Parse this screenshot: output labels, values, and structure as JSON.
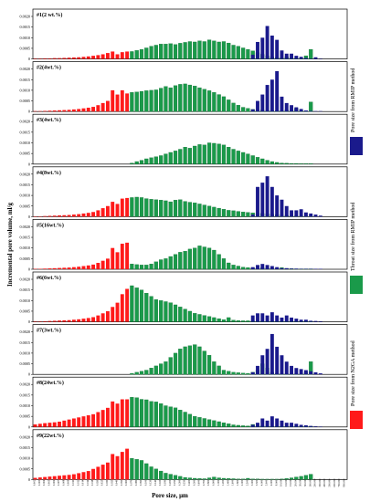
{
  "chart_data": {
    "type": "bar",
    "y_axis_label": "Incremental pore volume, ml/g",
    "x_axis_label": "Pore size, μm",
    "y_ticks": [
      "0",
      "0.0005",
      "0.0010",
      "0.0015",
      "0.0020"
    ],
    "ylim": [
      0,
      0.002
    ],
    "legend": [
      {
        "label": "Pore size from RMIP method",
        "color": "#1a1a8c"
      },
      {
        "label": "Throat size from RMIP method",
        "color": "#1a9a4a"
      },
      {
        "label": "Pore size from N2GA method",
        "color": "#ff1a1a"
      }
    ],
    "x_tick_labels": [
      "0.002",
      "0.003",
      "0.004",
      "0.005",
      "0.006",
      "0.007",
      "0.008",
      "0.009",
      "0.010",
      "0.012",
      "0.014",
      "0.016",
      "0.018",
      "0.020",
      "0.025",
      "0.030",
      "0.035",
      "0.040",
      "0.050",
      "0.060",
      "0.070",
      "0.080",
      "0.090",
      "0.100",
      "0.120",
      "0.140",
      "0.160",
      "0.180",
      "0.200",
      "0.250",
      "0.300",
      "0.350",
      "0.400",
      "0.500",
      "0.600",
      "0.700",
      "0.800",
      "0.900",
      "1.000",
      "1.200",
      "1.400",
      "1.600",
      "1.800",
      "2.000",
      "2.500",
      "3.000",
      "3.500",
      "4.000",
      "5.000",
      "6.000",
      "8.000",
      "10.000",
      "12.000",
      "15.000",
      "20.000",
      "30.000",
      "50.000",
      "100.000",
      "200.000",
      "300.000",
      "400.000",
      "500.000",
      "600.000",
      "700.000",
      "800.000"
    ],
    "panels": [
      {
        "label": "#1(2 wt.%)",
        "red": [
          2e-05,
          2e-05,
          3e-05,
          3e-05,
          4e-05,
          4e-05,
          5e-05,
          6e-05,
          7e-05,
          8e-05,
          0.0001,
          0.00012,
          0.00015,
          0.00018,
          0.00022,
          0.00028,
          0.00035,
          0.00022,
          0.00032,
          0.00035
        ],
        "green": [
          0.00035,
          0.0004,
          0.00045,
          0.00052,
          0.0006,
          0.00065,
          0.0007,
          0.0007,
          0.00072,
          0.00068,
          0.00074,
          0.00078,
          0.00082,
          0.0008,
          0.00085,
          0.00082,
          0.0009,
          0.00085,
          0.0008,
          0.00082,
          0.00075,
          0.00065,
          0.0006,
          0.00052,
          0.00045,
          0.00038,
          0.0003,
          0.00022,
          0.00015,
          0.0001,
          7e-05,
          6e-05,
          0.0001,
          6e-05,
          4e-05,
          4e-05,
          0.00015,
          0.00045
        ],
        "blue": [
          0.0002,
          0.0008,
          0.001,
          0.00155,
          0.0011,
          0.0009,
          0.0004,
          0.00025,
          0.00025,
          0.00015,
          0.0001,
          5e-05,
          2e-05,
          8e-05,
          2e-05
        ]
      },
      {
        "label": "#2(4wt.%)",
        "red": [
          2e-05,
          2e-05,
          3e-05,
          4e-05,
          5e-05,
          6e-05,
          7e-05,
          8e-05,
          0.0001,
          0.00012,
          0.00015,
          0.00018,
          0.00022,
          0.0003,
          0.0004,
          0.0005,
          0.001,
          0.0008,
          0.001,
          0.00085
        ],
        "green": [
          0.0009,
          0.00092,
          0.00095,
          0.00098,
          0.001,
          0.00102,
          0.0011,
          0.00118,
          0.00112,
          0.00122,
          0.00128,
          0.0013,
          0.00125,
          0.0012,
          0.00112,
          0.00105,
          0.00098,
          0.0009,
          0.0008,
          0.0007,
          0.00055,
          0.0004,
          0.0003,
          0.0002,
          0.00015,
          0.0001,
          8e-05,
          6e-05,
          5e-05,
          5e-05,
          4e-05,
          4e-05,
          6e-05,
          6e-05,
          0.00015,
          4e-05,
          3e-05,
          0.00045
        ],
        "blue": [
          0.0001,
          0.0005,
          0.0008,
          0.00125,
          0.0015,
          0.0019,
          0.0007,
          0.0004,
          0.0003,
          0.0002,
          0.00012,
          5e-05,
          3e-05,
          2e-05,
          2e-05
        ]
      },
      {
        "label": "#3(4wt.%)",
        "red": [
          0,
          0,
          0,
          0,
          0,
          0,
          0,
          0,
          0,
          0,
          0,
          0,
          0,
          0,
          0,
          0,
          0,
          0,
          0,
          0
        ],
        "green": [
          5e-05,
          0.00012,
          0.00018,
          0.00025,
          0.0003,
          0.00035,
          0.0004,
          0.00048,
          0.00055,
          0.00062,
          0.0007,
          0.0008,
          0.00075,
          0.00085,
          0.00092,
          0.0009,
          0.001,
          0.00098,
          0.00095,
          0.0009,
          0.0008,
          0.0007,
          0.00062,
          0.00055,
          0.00048,
          0.0004,
          0.00032,
          0.00025,
          0.00018,
          0.00012,
          8e-05,
          5e-05,
          4e-05,
          3e-05,
          3e-05,
          2e-05,
          2e-05,
          2e-05
        ],
        "blue": [
          0,
          0,
          0,
          0,
          0,
          0,
          0,
          0,
          0,
          0,
          0,
          0,
          0,
          0,
          0
        ]
      },
      {
        "label": "#4(8wt.%)",
        "red": [
          2e-05,
          2e-05,
          3e-05,
          4e-05,
          5e-05,
          6e-05,
          7e-05,
          8e-05,
          0.0001,
          0.00012,
          0.00015,
          0.00018,
          0.00022,
          0.0003,
          0.0004,
          0.0005,
          0.0007,
          0.0006,
          0.00085,
          0.00088
        ],
        "green": [
          0.0009,
          0.00092,
          0.0009,
          0.00085,
          0.00082,
          0.0008,
          0.00078,
          0.00075,
          0.0007,
          0.00078,
          0.0008,
          0.00072,
          0.00068,
          0.00065,
          0.0006,
          0.00055,
          0.0005,
          0.00045,
          0.0004,
          0.00035,
          0.0003,
          0.00028,
          0.00025,
          0.00022,
          0.0002,
          0.00018,
          0.00016,
          0.00015,
          0.00013,
          0.00012,
          0.0001,
          8e-05,
          6e-05,
          5e-05,
          4e-05,
          3e-05,
          3e-05,
          3e-05
        ],
        "blue": [
          0.0001,
          0.0014,
          0.0016,
          0.0019,
          0.0014,
          0.001,
          0.0008,
          0.0005,
          0.0003,
          0.0003,
          0.00035,
          0.0002,
          0.00015,
          0.0001,
          5e-05
        ]
      },
      {
        "label": "#5(16wt.%)",
        "red": [
          2e-05,
          2e-05,
          3e-05,
          4e-05,
          5e-05,
          6e-05,
          7e-05,
          8e-05,
          0.0001,
          0.00012,
          0.00015,
          0.00018,
          0.00022,
          0.0003,
          0.0004,
          0.0005,
          0.001,
          0.0008,
          0.0012,
          0.00125
        ],
        "green": [
          0.00025,
          0.00022,
          0.0002,
          0.0002,
          0.00025,
          0.00035,
          0.00045,
          0.0005,
          0.0006,
          0.0007,
          0.0008,
          0.00085,
          0.00095,
          0.001,
          0.0011,
          0.00105,
          0.001,
          0.0009,
          0.0007,
          0.0005,
          0.0003,
          0.0002,
          0.00015,
          0.0001,
          8e-05,
          6e-05,
          5e-05,
          8e-05,
          6e-05,
          4e-05,
          4e-05,
          8e-05,
          4e-05,
          3e-05,
          2e-05,
          2e-05,
          2e-05,
          2e-05
        ],
        "blue": [
          0.0001,
          0.0002,
          0.00025,
          0.0002,
          0.00015,
          0.0001,
          5e-05,
          5e-05,
          3e-05,
          3e-05,
          2e-05,
          2e-05,
          2e-05,
          2e-05,
          2e-05
        ]
      },
      {
        "label": "#6(6wt.%)",
        "red": [
          2e-05,
          2e-05,
          3e-05,
          4e-05,
          5e-05,
          6e-05,
          7e-05,
          8e-05,
          0.0001,
          0.00012,
          0.00015,
          0.00018,
          0.00022,
          0.0003,
          0.0004,
          0.0005,
          0.0007,
          0.0009,
          0.0013,
          0.00155
        ],
        "green": [
          0.0017,
          0.0016,
          0.0015,
          0.00135,
          0.0012,
          0.00105,
          0.001,
          0.00095,
          0.0009,
          0.0008,
          0.0007,
          0.0006,
          0.0005,
          0.0004,
          0.00035,
          0.0003,
          0.00025,
          0.0002,
          0.00015,
          0.0001,
          0.0002,
          8e-05,
          6e-05,
          5e-05,
          5e-05,
          4e-05,
          4e-05,
          3e-05,
          3e-05,
          3e-05,
          2e-05,
          2e-05,
          2e-05,
          2e-05,
          2e-05,
          2e-05,
          2e-05,
          2e-05
        ],
        "blue": [
          0.0003,
          0.0004,
          0.0004,
          0.0003,
          0.00045,
          0.0003,
          0.0002,
          0.0003,
          0.0002,
          0.00015,
          0.0001,
          0.0001,
          5e-05,
          4e-05,
          3e-05
        ]
      },
      {
        "label": "#7(3wt.%)",
        "red": [
          0,
          0,
          0,
          0,
          0,
          0,
          0,
          0,
          0,
          0,
          0,
          0,
          0,
          0,
          0,
          0,
          0,
          0,
          0,
          0
        ],
        "green": [
          5e-05,
          0.0001,
          0.00015,
          0.0002,
          0.0003,
          0.0004,
          0.0005,
          0.0006,
          0.0008,
          0.001,
          0.0012,
          0.0013,
          0.00135,
          0.0014,
          0.0013,
          0.0011,
          0.0009,
          0.0006,
          0.0004,
          0.0002,
          0.00015,
          0.0001,
          8e-05,
          6e-05,
          5e-05,
          0.0001,
          0.0002,
          0.0005,
          0.0003,
          0.0001,
          5e-05,
          3e-05,
          2e-05,
          2e-05,
          2e-05,
          2e-05,
          0.0001,
          0.0006
        ],
        "blue": [
          0.0001,
          0.0004,
          0.0009,
          0.0012,
          0.0019,
          0.0013,
          0.0009,
          0.0006,
          0.0004,
          0.0003,
          0.00025,
          0.0002,
          0.00015,
          0.0001,
          5e-05
        ]
      },
      {
        "label": "#8(24wt.%)",
        "red": [
          0.00012,
          0.00015,
          0.00018,
          0.0002,
          0.00022,
          0.00025,
          0.0003,
          0.00035,
          0.0004,
          0.00045,
          0.0005,
          0.00055,
          0.0006,
          0.0007,
          0.0008,
          0.0009,
          0.0012,
          0.0011,
          0.0013,
          0.0013
        ],
        "green": [
          0.0014,
          0.00138,
          0.0013,
          0.00128,
          0.0012,
          0.00118,
          0.0011,
          0.001,
          0.00095,
          0.0009,
          0.0008,
          0.0007,
          0.0006,
          0.0005,
          0.00045,
          0.0004,
          0.00035,
          0.0003,
          0.00025,
          0.0002,
          0.00015,
          0.0001,
          8e-05,
          6e-05,
          5e-05,
          0.00012,
          6e-05,
          5e-05,
          4e-05,
          3e-05,
          3e-05,
          2e-05,
          2e-05,
          2e-05,
          2e-05,
          2e-05,
          2e-05,
          2e-05
        ],
        "blue": [
          0.0001,
          0.0002,
          0.0004,
          0.0003,
          0.0005,
          0.0004,
          0.0003,
          0.0002,
          0.0002,
          0.00015,
          0.0001,
          8e-05,
          5e-05,
          3e-05,
          2e-05
        ]
      },
      {
        "label": "#9(22wt.%)",
        "red": [
          8e-05,
          0.0001,
          0.00012,
          0.00014,
          0.00016,
          0.00018,
          0.0002,
          0.00022,
          0.00025,
          0.0003,
          0.00035,
          0.0004,
          0.0005,
          0.0006,
          0.0007,
          0.0008,
          0.0012,
          0.0011,
          0.0013,
          0.00145
        ],
        "green": [
          0.001,
          0.00095,
          0.0009,
          0.00075,
          0.0006,
          0.0005,
          0.0004,
          0.0003,
          0.00025,
          0.0002,
          0.00015,
          0.0001,
          8e-05,
          6e-05,
          5e-05,
          4e-05,
          8e-05,
          0.00012,
          8e-05,
          6e-05,
          5e-05,
          4e-05,
          3e-05,
          3e-05,
          6e-05,
          3e-05,
          3e-05,
          2e-05,
          2e-05,
          2e-05,
          2e-05,
          3e-05,
          5e-05,
          8e-05,
          0.00012,
          0.00015,
          0.0002,
          0.00025
        ],
        "blue": [
          0,
          0,
          0,
          0,
          0,
          0,
          0,
          0,
          0,
          0,
          0,
          0,
          0,
          0,
          0
        ]
      }
    ]
  }
}
